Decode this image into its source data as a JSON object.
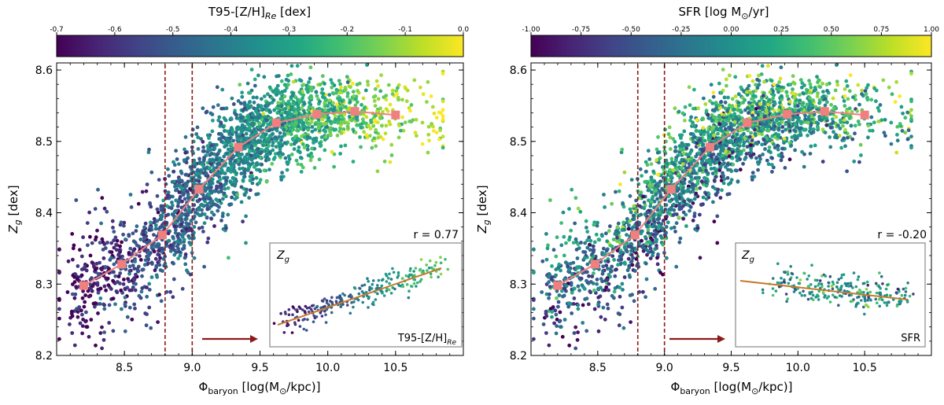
{
  "figure": {
    "panels": [
      {
        "colorbar_label": "T95-[Z/H]",
        "colorbar_label_sub": "Re",
        "colorbar_label_unit": "  [dex]",
        "xlabel_main": "Φ",
        "xlabel_sub": "baryon",
        "xlabel_unit": "  [log(M",
        "xlabel_sun": "⊙",
        "xlabel_tail": "/kpc)]",
        "ylabel_main": "Z",
        "ylabel_sub": "g",
        "ylabel_unit": "  [dex]",
        "r_label": "r = 0.77",
        "inset_ylabel": "Z",
        "inset_ylabel_sub": "g",
        "inset_xlabel": "T95-[Z/H]",
        "inset_xlabel_sub": "Re",
        "colorbar_colormap": "viridis"
      },
      {
        "colorbar_label": "SFR [log M",
        "colorbar_label_sub": "⊙",
        "colorbar_label_unit": "/yr]",
        "xlabel_main": "Φ",
        "xlabel_sub": "baryon",
        "xlabel_unit": "  [log(M",
        "xlabel_sun": "⊙",
        "xlabel_tail": "/kpc)]",
        "ylabel_main": "Z",
        "ylabel_sub": "g",
        "ylabel_unit": "  [dex]",
        "r_label": "r = -0.20",
        "inset_ylabel": "Z",
        "inset_ylabel_sub": "g",
        "inset_xlabel": "SFR",
        "inset_xlabel_sub": "",
        "colorbar_colormap": "viridis"
      }
    ]
  },
  "chart_data": [
    {
      "type": "scatter",
      "title": "",
      "xlabel": "Φbaryon [log(M⊙/kpc)]",
      "ylabel": "Zg [dex]",
      "xlim": [
        8.0,
        11.0
      ],
      "ylim": [
        8.2,
        8.61
      ],
      "xticks": [
        "8.5",
        "9.0",
        "9.5",
        "10.0",
        "10.5"
      ],
      "yticks": [
        "8.2",
        "8.3",
        "8.4",
        "8.5",
        "8.6"
      ],
      "colorbar": {
        "label": "T95-[Z/H]Re [dex]",
        "range": [
          -0.7,
          0.0
        ],
        "ticks": [
          "-0.7",
          "-0.6",
          "-0.5",
          "-0.4",
          "-0.3",
          "-0.2",
          "-0.1",
          "0.0"
        ]
      },
      "median_trend": {
        "color": "#f08080",
        "x": [
          8.2,
          8.48,
          8.78,
          9.05,
          9.34,
          9.62,
          9.92,
          10.2,
          10.5
        ],
        "y": [
          8.298,
          8.328,
          8.369,
          8.433,
          8.492,
          8.526,
          8.538,
          8.542,
          8.537
        ]
      },
      "vlines": [
        8.8,
        9.0
      ],
      "correlation_r": 0.77,
      "inset": {
        "xlabel": "T95-[Z/H]Re",
        "ylabel": "Zg",
        "fit_line": true
      },
      "grid": false
    },
    {
      "type": "scatter",
      "title": "",
      "xlabel": "Φbaryon [log(M⊙/kpc)]",
      "ylabel": "Zg [dex]",
      "xlim": [
        8.0,
        11.0
      ],
      "ylim": [
        8.2,
        8.61
      ],
      "xticks": [
        "8.5",
        "9.0",
        "9.5",
        "10.0",
        "10.5"
      ],
      "yticks": [
        "8.2",
        "8.3",
        "8.4",
        "8.5",
        "8.6"
      ],
      "colorbar": {
        "label": "SFR [log M⊙/yr]",
        "range": [
          -1.0,
          1.0
        ],
        "ticks": [
          "-1.00",
          "-0.75",
          "-0.50",
          "-0.25",
          "0.00",
          "0.25",
          "0.50",
          "0.75",
          "1.00"
        ]
      },
      "median_trend": {
        "color": "#f08080",
        "x": [
          8.2,
          8.48,
          8.78,
          9.05,
          9.34,
          9.62,
          9.92,
          10.2,
          10.5
        ],
        "y": [
          8.298,
          8.328,
          8.369,
          8.433,
          8.492,
          8.526,
          8.538,
          8.542,
          8.537
        ]
      },
      "vlines": [
        8.8,
        9.0
      ],
      "correlation_r": -0.2,
      "inset": {
        "xlabel": "SFR",
        "ylabel": "Zg",
        "fit_line": true
      },
      "grid": false
    }
  ]
}
